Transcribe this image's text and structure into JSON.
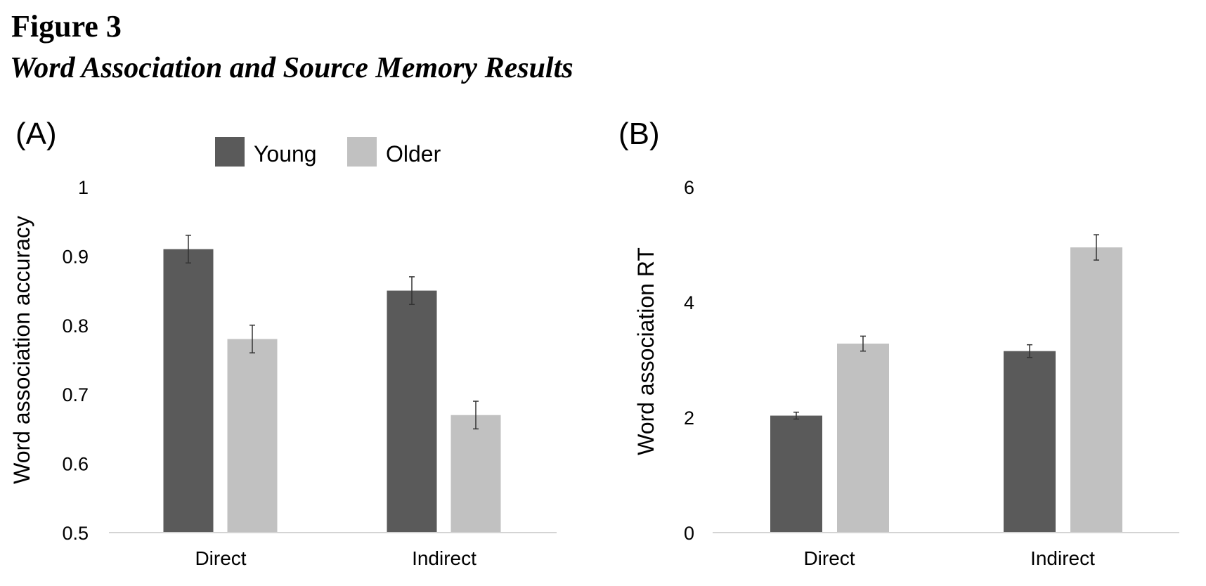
{
  "figure": {
    "label": "Figure 3",
    "title": "Word Association and Source Memory Results"
  },
  "colors": {
    "young": "#5a5a5a",
    "older": "#c1c1c1",
    "axis": "#d4d4d4",
    "error": "#333333"
  },
  "chart_data": [
    {
      "type": "bar",
      "panel_label": "(A)",
      "categories": [
        "Direct",
        "Indirect"
      ],
      "series": [
        {
          "name": "Young",
          "values": [
            0.91,
            0.85
          ],
          "errors": [
            0.02,
            0.02
          ]
        },
        {
          "name": "Older",
          "values": [
            0.78,
            0.67
          ],
          "errors": [
            0.02,
            0.02
          ]
        }
      ],
      "ylabel": "Word association accuracy",
      "xlabel": "",
      "ylim": [
        0.5,
        1
      ],
      "yticks": [
        "0.5",
        "0.6",
        "0.7",
        "0.8",
        "0.9",
        "1"
      ],
      "legend": "top",
      "grid": false
    },
    {
      "type": "bar",
      "panel_label": "(B)",
      "categories": [
        "Direct",
        "Indirect"
      ],
      "series": [
        {
          "name": "Young",
          "values": [
            2.03,
            3.15
          ],
          "errors": [
            0.06,
            0.11
          ]
        },
        {
          "name": "Older",
          "values": [
            3.28,
            4.95
          ],
          "errors": [
            0.13,
            0.22
          ]
        }
      ],
      "ylabel": "Word association RT",
      "xlabel": "",
      "ylim": [
        0,
        6
      ],
      "yticks": [
        "0",
        "2",
        "4",
        "6"
      ],
      "legend": "none",
      "grid": false
    }
  ]
}
